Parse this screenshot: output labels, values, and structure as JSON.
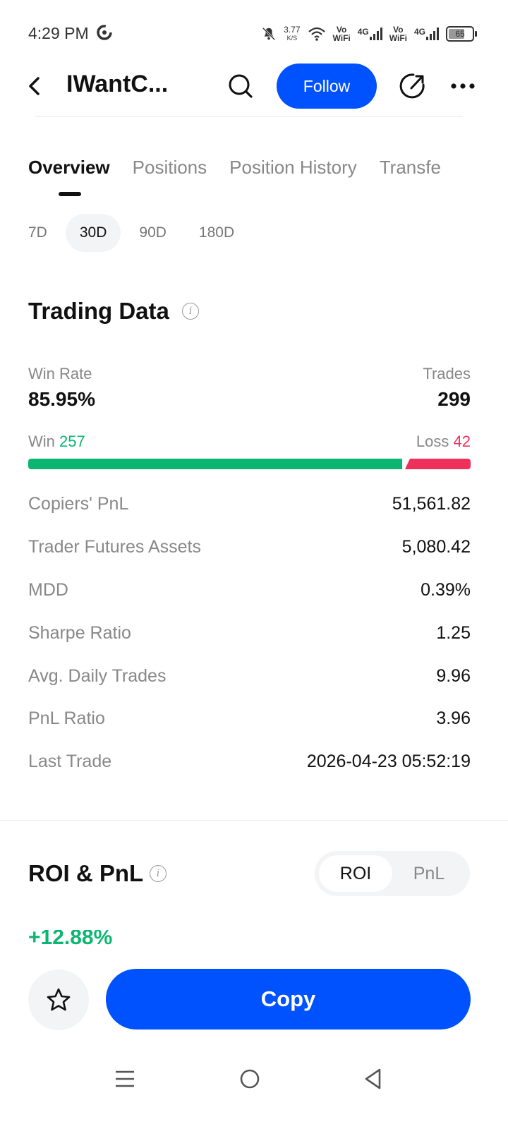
{
  "status_bar": {
    "time": "4:29 PM",
    "speed_value": "3.77",
    "speed_unit": "K/S",
    "net1_top": "Vo",
    "net1_bottom": "WiFi",
    "net1_gen": "4G",
    "net2_top": "Vo",
    "net2_bottom": "WiFi",
    "net2_gen": "4G",
    "battery": "65"
  },
  "header": {
    "title": "IWantC...",
    "follow_label": "Follow"
  },
  "tabs": [
    {
      "label": "Overview",
      "active": true
    },
    {
      "label": "Positions",
      "active": false
    },
    {
      "label": "Position History",
      "active": false
    },
    {
      "label": "Transfe",
      "active": false
    }
  ],
  "periods": [
    {
      "label": "7D",
      "active": false
    },
    {
      "label": "30D",
      "active": true
    },
    {
      "label": "90D",
      "active": false
    },
    {
      "label": "180D",
      "active": false
    }
  ],
  "trading_data": {
    "title": "Trading Data",
    "info_glyph": "i",
    "win_rate_label": "Win Rate",
    "win_rate_value": "85.95%",
    "trades_label": "Trades",
    "trades_value": "299",
    "win_label": "Win",
    "win_value": "257",
    "loss_label": "Loss",
    "loss_value": "42",
    "win_fraction": 0.8595,
    "stats": [
      {
        "label": "Copiers' PnL",
        "value": "51,561.82"
      },
      {
        "label": "Trader Futures Assets",
        "value": "5,080.42"
      },
      {
        "label": "MDD",
        "value": "0.39%"
      },
      {
        "label": "Sharpe Ratio",
        "value": "1.25"
      },
      {
        "label": "Avg. Daily Trades",
        "value": "9.96"
      },
      {
        "label": "PnL Ratio",
        "value": "3.96"
      },
      {
        "label": "Last Trade",
        "value": "2026-04-23 05:52:19"
      }
    ]
  },
  "roi_pnl": {
    "title": "ROI & PnL",
    "info_glyph": "i",
    "toggle_roi": "ROI",
    "toggle_pnl": "PnL",
    "roi_value": "+12.88%"
  },
  "actions": {
    "copy_label": "Copy"
  },
  "colors": {
    "accent": "#0052ff",
    "win": "#0bb673",
    "loss": "#f0305c"
  }
}
